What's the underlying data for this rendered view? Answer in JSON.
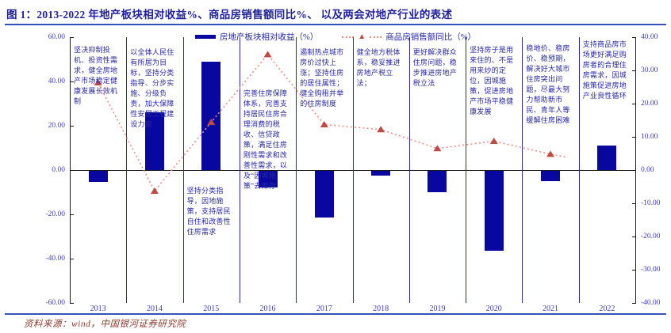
{
  "header": {
    "title": "图 1：2013-2022 年地产板块相对收益%、商品房销售额同比%、 以及两会对地产行业的表述"
  },
  "legend": {
    "bars_label": "房地产板块相对收益（%）",
    "line_label": "商品房销售额同比（%）"
  },
  "footer": {
    "source": "资料来源：wind，中国银河证券研究院"
  },
  "colors": {
    "bar": "#0808a0",
    "line": "#ef8d80",
    "marker": "#bf4a42",
    "separator": "#2b2b9e",
    "axis_text": "#3d3dbb",
    "annotation_text": "#2727a3",
    "title_text": "#22229e",
    "rule": "#3352b8",
    "source_text": "#8b3a2e"
  },
  "chart_data": {
    "type": "bar",
    "title": "2013-2022 年地产板块相对收益%、商品房销售额同比%、以及两会对地产行业的表述",
    "categories": [
      "2013",
      "2014",
      "2015",
      "2016",
      "2017",
      "2018",
      "2019",
      "2020",
      "2021",
      "2022"
    ],
    "series": [
      {
        "name": "房地产板块相对收益（%）",
        "type": "bar",
        "axis": "left",
        "values": [
          -5,
          26,
          49,
          -7.5,
          -21,
          -2,
          -9.5,
          -36,
          -4.5,
          11
        ]
      },
      {
        "name": "商品房销售额同比（%）",
        "type": "line",
        "axis": "right",
        "values": [
          26.3,
          -6.3,
          14.4,
          34.8,
          13.7,
          12.2,
          6.5,
          8.7,
          4.8,
          null
        ]
      }
    ],
    "left_axis": {
      "ticks": [
        "60.00",
        "40.00",
        "20.00",
        "0.00",
        "-20.00",
        "-40.00",
        "-60.00"
      ],
      "min": -60,
      "max": 60
    },
    "right_axis": {
      "ticks": [
        "40.00",
        "30.00",
        "20.00",
        "10.00",
        "0.00",
        "-10.00",
        "-20.00",
        "-30.00",
        "-40.00"
      ],
      "min": -40,
      "max": 40
    },
    "grid": false,
    "legend_position": "top",
    "annotations": [
      {
        "year": "2013",
        "text": "坚决抑制投机、投资性需求，健全房地产市场稳定健康发展长效机制"
      },
      {
        "year": "2014",
        "text": "以全体人民住有所居为目标，坚持分类指导、分步实施、分级负责，加大保障性安居工程建设力度"
      },
      {
        "year": "2015",
        "text": "坚持分类指导，因地施策，支持居民自住和改善性住房需求"
      },
      {
        "year": "2016",
        "text": "完善住房保障体系，完善支持居民住房合理消费的税收、信贷政策，满足住房刚性需求和改善性需求，以及“因城施策”去库存"
      },
      {
        "year": "2017",
        "text": "遏制热点城市房价过快上涨；坚持住房的居住属性；健全购租并举的住房制度"
      },
      {
        "year": "2018",
        "text": "健全地方税体系，稳妥推进房地产税立法；"
      },
      {
        "year": "2019",
        "text": "更好解决群众住房问题，稳步推进房地产税立法"
      },
      {
        "year": "2020",
        "text": "坚持房子是用来住的、不是用来炒的定位，因城施策，促进房地产市场平稳健康发展"
      },
      {
        "year": "2021",
        "text": "稳地价、稳房价、稳预期，解决好大城市住房突出问题，尽最大努力帮助新市民、青年人等缓解住房困难"
      },
      {
        "year": "2022",
        "text": "支持商品房市场更好满足购房者的合理住房需求，因城施策促进房地产业良性循环"
      }
    ]
  }
}
